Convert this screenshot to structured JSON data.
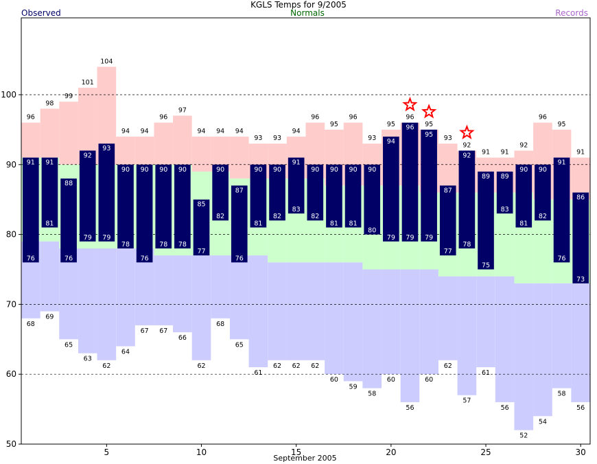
{
  "title": "KGLS Temps for 9/2005",
  "legend": {
    "observed": "Observed",
    "normals": "Normals",
    "records": "Records"
  },
  "colors": {
    "observed": "#000066",
    "normal_band": "#ccffcc",
    "record_high_fill": "#ffcccc",
    "record_low_fill": "#ccccff",
    "record_star": "#ff0000",
    "normals_text": "#006600",
    "records_text": "#aa66cc"
  },
  "chart_data": {
    "type": "bar",
    "xlabel": "September 2005",
    "ylabel": "",
    "xlim": [
      0.5,
      30.5
    ],
    "ylim": [
      50,
      111
    ],
    "x_ticks": [
      5,
      10,
      15,
      20,
      25,
      30
    ],
    "y_ticks": [
      50,
      60,
      70,
      80,
      90,
      100
    ],
    "grid_y": [
      60,
      70,
      80,
      90,
      100
    ],
    "days": [
      1,
      2,
      3,
      4,
      5,
      6,
      7,
      8,
      9,
      10,
      11,
      12,
      13,
      14,
      15,
      16,
      17,
      18,
      19,
      20,
      21,
      22,
      23,
      24,
      25,
      26,
      27,
      28,
      29,
      30
    ],
    "series": [
      {
        "name": "Observed high",
        "values": [
          91,
          91,
          88,
          92,
          93,
          90,
          90,
          90,
          90,
          85,
          90,
          87,
          90,
          90,
          91,
          90,
          90,
          90,
          90,
          94,
          96,
          95,
          87,
          92,
          89,
          89,
          90,
          90,
          91,
          86
        ]
      },
      {
        "name": "Observed low",
        "values": [
          76,
          81,
          76,
          79,
          79,
          78,
          76,
          78,
          78,
          77,
          82,
          76,
          81,
          82,
          83,
          82,
          81,
          81,
          80,
          79,
          79,
          79,
          77,
          78,
          75,
          83,
          81,
          82,
          76,
          73
        ]
      },
      {
        "name": "Record high",
        "values": [
          96,
          98,
          99,
          101,
          104,
          94,
          94,
          96,
          97,
          94,
          94,
          94,
          93,
          93,
          94,
          96,
          95,
          96,
          93,
          95,
          96,
          95,
          93,
          92,
          91,
          91,
          92,
          96,
          95,
          91
        ]
      },
      {
        "name": "Record low",
        "values": [
          68,
          69,
          65,
          63,
          62,
          64,
          67,
          67,
          66,
          62,
          68,
          65,
          61,
          62,
          62,
          62,
          60,
          59,
          58,
          60,
          56,
          60,
          62,
          57,
          61,
          56,
          52,
          54,
          58,
          56
        ]
      },
      {
        "name": "Normal high",
        "values": [
          91,
          91,
          90,
          90,
          90,
          90,
          90,
          90,
          90,
          89,
          89,
          88,
          88,
          88,
          88,
          88,
          87,
          87,
          87,
          87,
          87,
          86,
          86,
          86,
          86,
          86,
          86,
          85,
          85,
          85
        ]
      },
      {
        "name": "Normal low",
        "values": [
          79,
          79,
          78,
          78,
          78,
          78,
          78,
          77,
          77,
          77,
          77,
          77,
          77,
          76,
          76,
          76,
          76,
          76,
          75,
          75,
          75,
          75,
          74,
          74,
          74,
          74,
          73,
          73,
          73,
          73
        ]
      }
    ],
    "record_set_days": [
      21,
      22,
      24
    ]
  }
}
